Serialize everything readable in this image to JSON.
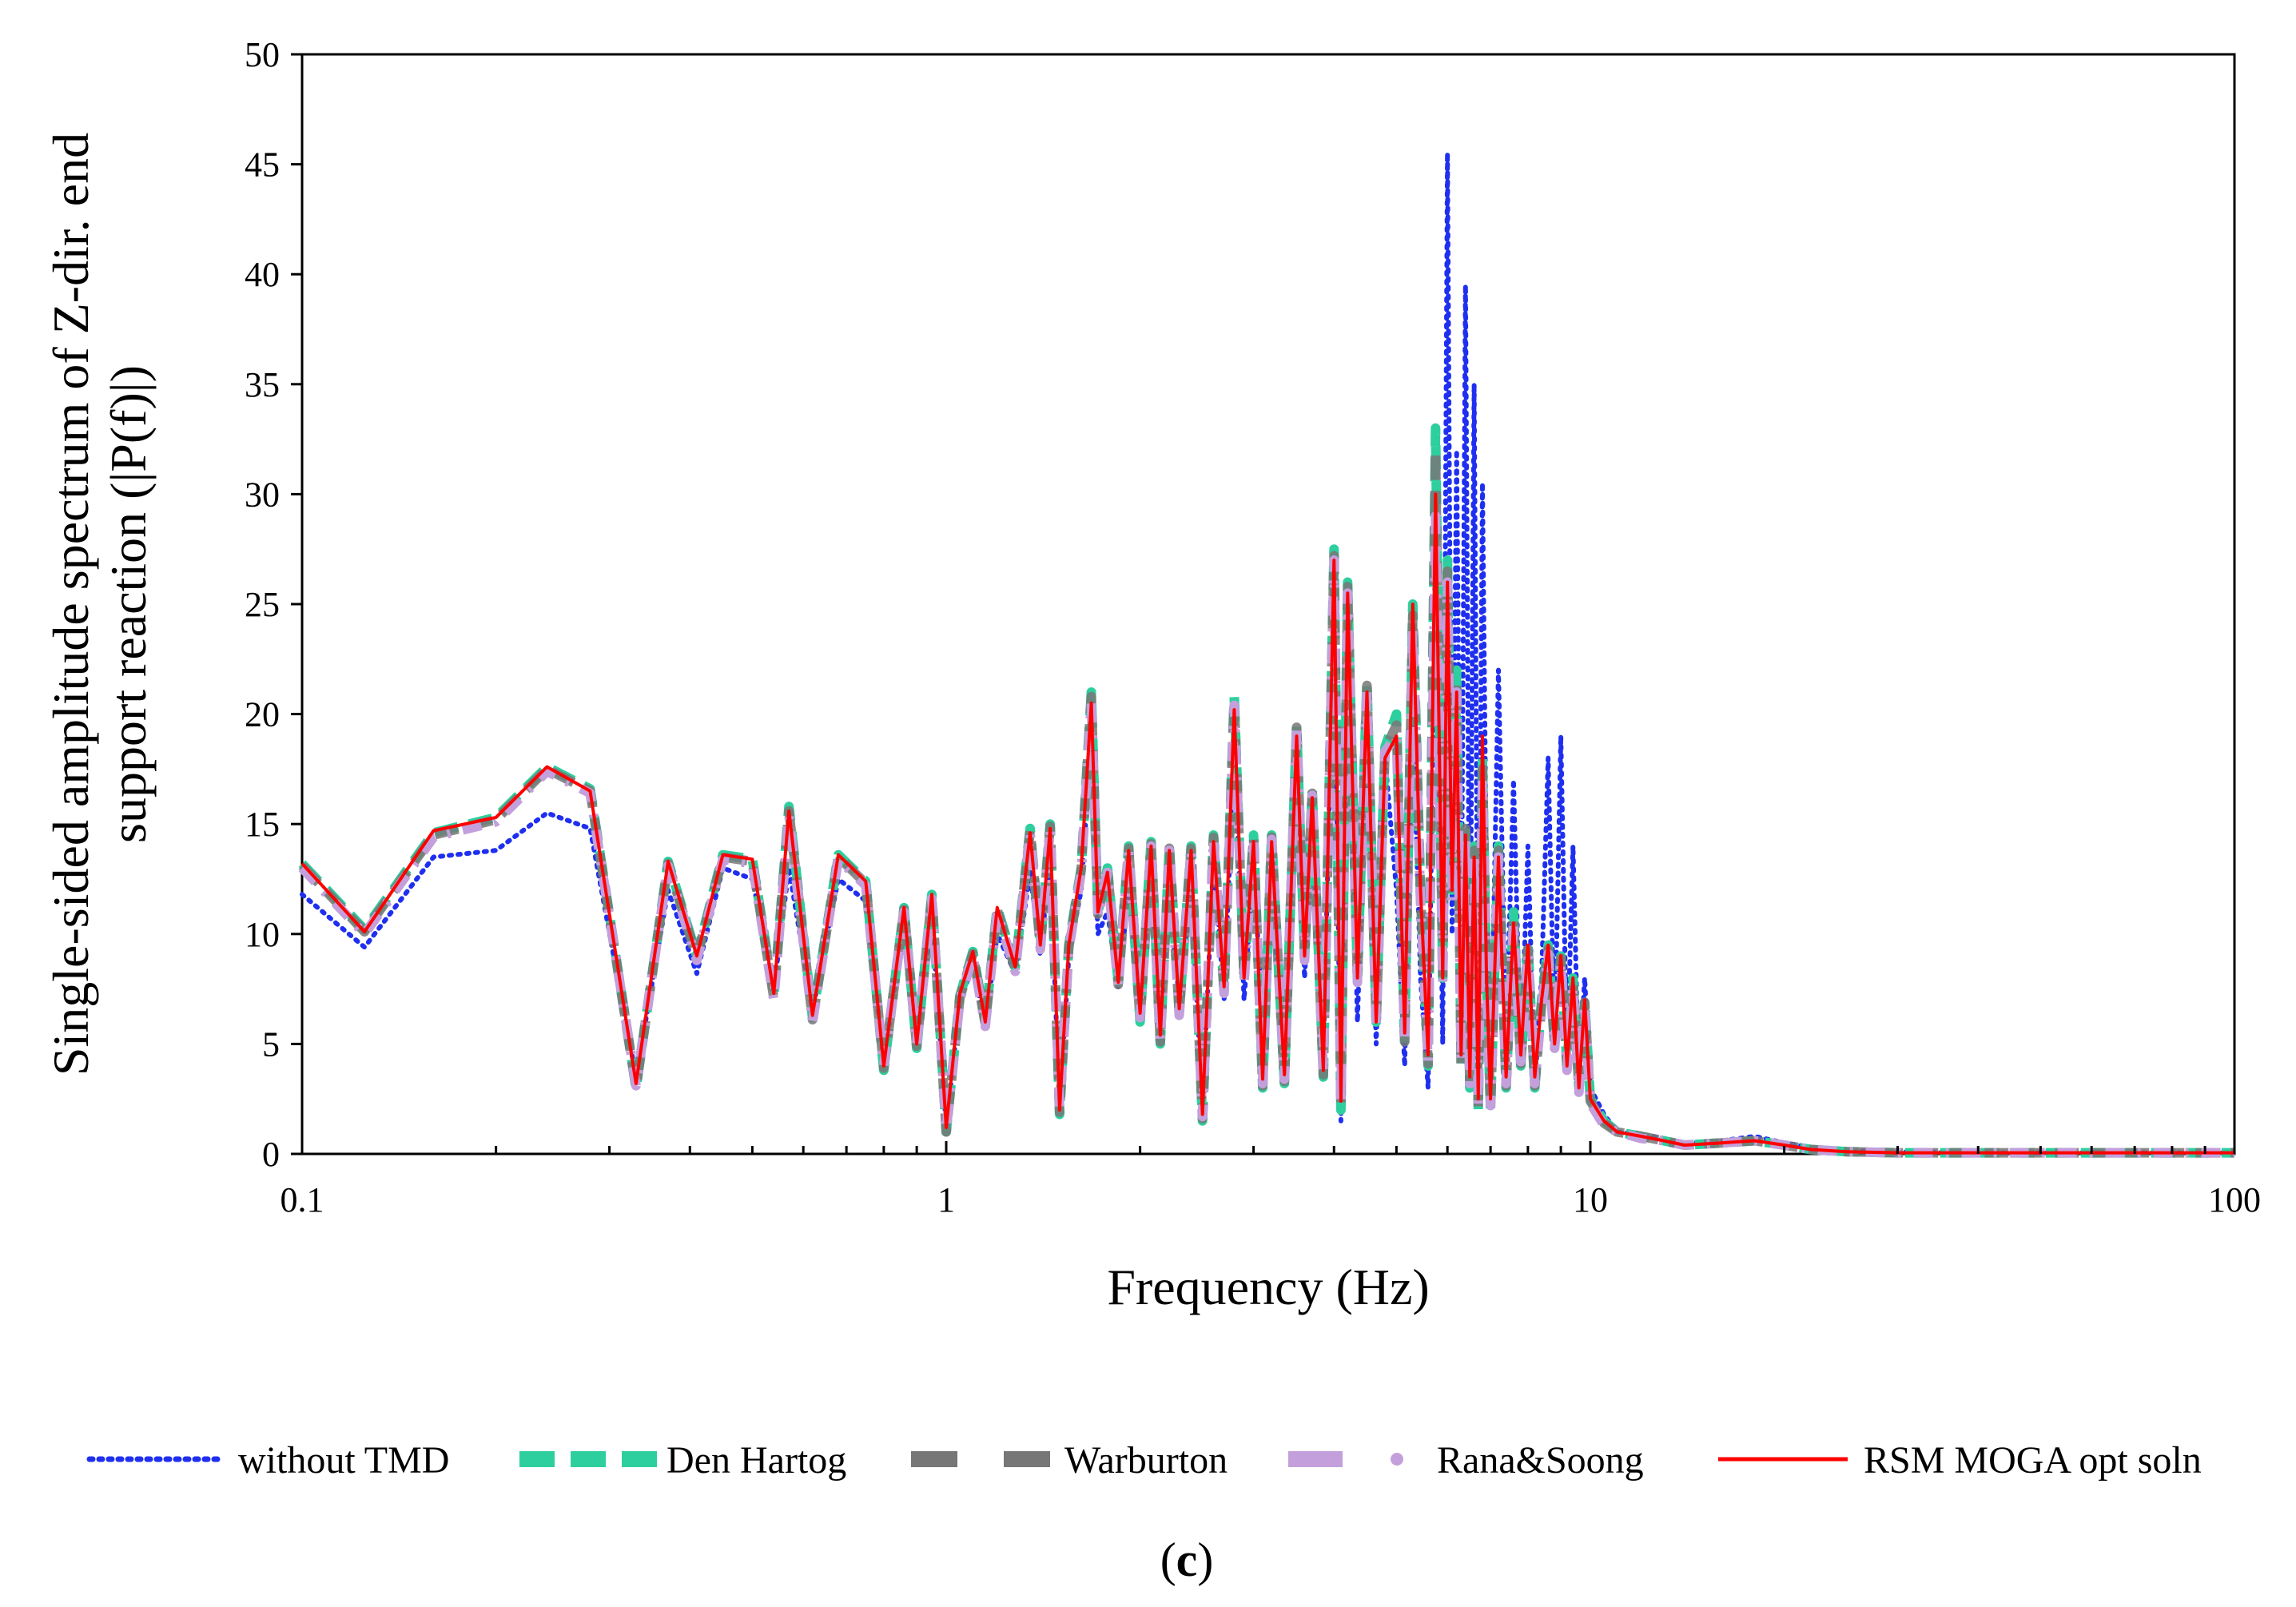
{
  "chart_data": {
    "type": "line",
    "title": "",
    "xlabel": "Frequency (Hz)",
    "ylabel_line1": "Single-sided amplitude spectrum of Z-dir. end",
    "ylabel_line2": "support reaction (|P(f)|)",
    "xscale": "log",
    "xlim": [
      0.1,
      100
    ],
    "ylim": [
      0,
      50
    ],
    "x_tick_labels": [
      "0.1",
      "1",
      "10",
      "100"
    ],
    "x_tick_values": [
      0.1,
      1,
      10,
      100
    ],
    "y_tick_labels": [
      "0",
      "5",
      "10",
      "15",
      "20",
      "25",
      "30",
      "35",
      "40",
      "45",
      "50"
    ],
    "y_tick_values": [
      0,
      5,
      10,
      15,
      20,
      25,
      30,
      35,
      40,
      45,
      50
    ],
    "grid": false,
    "legend_position": "bottom",
    "caption_open": "(",
    "caption_letter": "c",
    "caption_close": ")",
    "series": [
      {
        "name": "without TMD",
        "color": "#1f2ff0",
        "style": "dotted",
        "x": [
          0.1,
          0.125,
          0.16,
          0.2,
          0.24,
          0.28,
          0.33,
          0.37,
          0.41,
          0.45,
          0.5,
          0.54,
          0.57,
          0.62,
          0.68,
          0.75,
          0.8,
          0.86,
          0.9,
          0.95,
          1.0,
          1.05,
          1.1,
          1.15,
          1.2,
          1.28,
          1.35,
          1.4,
          1.45,
          1.5,
          1.55,
          1.62,
          1.68,
          1.72,
          1.78,
          1.85,
          1.92,
          2.0,
          2.08,
          2.15,
          2.22,
          2.3,
          2.4,
          2.5,
          2.6,
          2.7,
          2.8,
          2.9,
          3.0,
          3.1,
          3.2,
          3.35,
          3.5,
          3.6,
          3.7,
          3.85,
          4.0,
          4.1,
          4.2,
          4.35,
          4.5,
          4.65,
          4.8,
          5.0,
          5.15,
          5.3,
          5.45,
          5.6,
          5.75,
          5.9,
          6.0,
          6.1,
          6.2,
          6.3,
          6.4,
          6.5,
          6.6,
          6.7,
          6.8,
          6.9,
          7.0,
          7.2,
          7.4,
          7.6,
          7.8,
          8.0,
          8.2,
          8.4,
          8.6,
          8.8,
          9.0,
          9.2,
          9.4,
          9.6,
          9.8,
          10.0,
          10.5,
          11.0,
          12.0,
          13.0,
          14.0,
          16.0,
          18.0,
          20.0,
          22.0,
          25.0,
          30.0,
          40.0,
          60.0,
          100.0
        ],
        "y": [
          11.8,
          9.4,
          13.5,
          13.8,
          15.5,
          14.8,
          3.5,
          12.0,
          8.2,
          13.0,
          12.5,
          7.5,
          13.0,
          6.5,
          12.5,
          11.5,
          4.2,
          10.5,
          5.0,
          10.8,
          1.2,
          7.0,
          8.5,
          5.8,
          10.0,
          8.2,
          12.8,
          9.0,
          13.5,
          2.0,
          9.0,
          12.0,
          19.0,
          10.0,
          11.0,
          7.5,
          12.0,
          6.5,
          12.5,
          5.5,
          12.0,
          7.0,
          12.0,
          2.0,
          13.5,
          7.0,
          18.5,
          7.0,
          13.0,
          6.0,
          12.0,
          3.5,
          18.0,
          8.0,
          14.5,
          4.5,
          25.0,
          1.5,
          24.0,
          6.0,
          20.0,
          5.0,
          18.0,
          12.0,
          4.0,
          20.0,
          8.0,
          3.0,
          28.0,
          5.0,
          45.5,
          10.0,
          32.0,
          8.0,
          39.5,
          6.0,
          35.0,
          4.0,
          30.5,
          12.0,
          3.0,
          22.0,
          5.0,
          17.0,
          4.0,
          14.0,
          3.0,
          8.0,
          18.0,
          5.0,
          19.0,
          4.0,
          14.0,
          3.0,
          8.0,
          3.0,
          1.8,
          1.0,
          0.9,
          0.7,
          0.5,
          0.6,
          0.8,
          0.5,
          0.3,
          0.15,
          0.1,
          0.05,
          0.05,
          0.05
        ]
      },
      {
        "name": "Den Hartog",
        "color": "#2ecf9e",
        "style": "dashed",
        "x": [
          0.1,
          0.125,
          0.16,
          0.2,
          0.24,
          0.28,
          0.33,
          0.37,
          0.41,
          0.45,
          0.5,
          0.54,
          0.57,
          0.62,
          0.68,
          0.75,
          0.8,
          0.86,
          0.9,
          0.95,
          1.0,
          1.05,
          1.1,
          1.15,
          1.2,
          1.28,
          1.35,
          1.4,
          1.45,
          1.5,
          1.55,
          1.62,
          1.68,
          1.72,
          1.78,
          1.85,
          1.92,
          2.0,
          2.08,
          2.15,
          2.22,
          2.3,
          2.4,
          2.5,
          2.6,
          2.7,
          2.8,
          2.9,
          3.0,
          3.1,
          3.2,
          3.35,
          3.5,
          3.6,
          3.7,
          3.85,
          4.0,
          4.1,
          4.2,
          4.35,
          4.5,
          4.65,
          4.8,
          5.0,
          5.15,
          5.3,
          5.45,
          5.6,
          5.75,
          5.9,
          6.0,
          6.1,
          6.2,
          6.3,
          6.4,
          6.5,
          6.6,
          6.7,
          6.8,
          6.9,
          7.0,
          7.2,
          7.4,
          7.6,
          7.8,
          8.0,
          8.2,
          8.4,
          8.6,
          8.8,
          9.0,
          9.2,
          9.4,
          9.6,
          9.8,
          10.0,
          10.5,
          11.0,
          12.0,
          13.0,
          14.0,
          16.0,
          18.0,
          20.0,
          22.0,
          25.0,
          30.0,
          40.0,
          60.0,
          100.0
        ],
        "y": [
          13.2,
          10.2,
          14.6,
          15.3,
          17.6,
          16.6,
          3.0,
          13.3,
          9.0,
          13.6,
          13.4,
          7.2,
          15.8,
          6.2,
          13.6,
          12.4,
          3.8,
          11.2,
          4.8,
          11.8,
          1.0,
          7.2,
          9.2,
          6.0,
          11.2,
          8.5,
          14.8,
          9.5,
          15.0,
          1.8,
          9.5,
          13.0,
          21.0,
          11.0,
          13.0,
          7.8,
          14.0,
          6.0,
          14.2,
          5.0,
          14.0,
          6.5,
          14.0,
          1.5,
          14.5,
          7.5,
          20.8,
          8.0,
          14.5,
          3.0,
          14.5,
          3.2,
          19.5,
          9.0,
          16.5,
          3.5,
          27.5,
          2.0,
          26.0,
          8.0,
          21.5,
          6.0,
          18.5,
          20.0,
          5.0,
          25.0,
          12.0,
          4.0,
          33.0,
          8.0,
          27.0,
          12.0,
          22.0,
          4.0,
          15.0,
          3.0,
          14.0,
          2.0,
          18.0,
          8.0,
          2.0,
          14.0,
          3.0,
          11.0,
          4.0,
          9.5,
          3.0,
          7.0,
          9.5,
          5.0,
          9.0,
          4.0,
          8.0,
          3.0,
          7.0,
          2.5,
          1.5,
          1.0,
          0.8,
          0.6,
          0.4,
          0.5,
          0.6,
          0.4,
          0.2,
          0.1,
          0.05,
          0.05,
          0.05,
          0.05
        ]
      },
      {
        "name": "Warburton",
        "color": "#777777",
        "style": "dashed",
        "x": [
          0.1,
          0.125,
          0.16,
          0.2,
          0.24,
          0.28,
          0.33,
          0.37,
          0.41,
          0.45,
          0.5,
          0.54,
          0.57,
          0.62,
          0.68,
          0.75,
          0.8,
          0.86,
          0.9,
          0.95,
          1.0,
          1.05,
          1.1,
          1.15,
          1.2,
          1.28,
          1.35,
          1.4,
          1.45,
          1.5,
          1.55,
          1.62,
          1.68,
          1.72,
          1.78,
          1.85,
          1.92,
          2.0,
          2.08,
          2.15,
          2.22,
          2.3,
          2.4,
          2.5,
          2.6,
          2.7,
          2.8,
          2.9,
          3.0,
          3.1,
          3.2,
          3.35,
          3.5,
          3.6,
          3.7,
          3.85,
          4.0,
          4.1,
          4.2,
          4.35,
          4.5,
          4.65,
          4.8,
          5.0,
          5.15,
          5.3,
          5.45,
          5.6,
          5.75,
          5.9,
          6.0,
          6.1,
          6.2,
          6.3,
          6.4,
          6.5,
          6.6,
          6.7,
          6.8,
          6.9,
          7.0,
          7.2,
          7.4,
          7.6,
          7.8,
          8.0,
          8.2,
          8.4,
          8.6,
          8.8,
          9.0,
          9.2,
          9.4,
          9.6,
          9.8,
          10.0,
          10.5,
          11.0,
          12.0,
          13.0,
          14.0,
          16.0,
          18.0,
          20.0,
          22.0,
          25.0,
          30.0,
          40.0,
          60.0,
          100.0
        ],
        "y": [
          13.1,
          10.1,
          14.5,
          15.2,
          17.5,
          16.5,
          3.0,
          13.2,
          8.9,
          13.5,
          13.3,
          7.1,
          15.6,
          6.1,
          13.5,
          12.3,
          3.9,
          11.1,
          4.9,
          11.7,
          1.0,
          7.1,
          9.1,
          5.9,
          11.1,
          8.4,
          14.7,
          9.4,
          14.9,
          1.9,
          9.4,
          12.9,
          20.8,
          10.9,
          12.9,
          7.7,
          13.9,
          6.1,
          14.1,
          5.1,
          13.9,
          6.4,
          13.9,
          1.6,
          14.4,
          7.4,
          20.6,
          7.9,
          14.4,
          3.1,
          14.4,
          3.3,
          19.4,
          8.9,
          16.4,
          3.6,
          27.2,
          2.1,
          25.8,
          7.9,
          21.3,
          5.9,
          18.4,
          19.5,
          5.1,
          24.5,
          11.8,
          4.1,
          32.0,
          7.9,
          26.5,
          11.8,
          21.5,
          4.1,
          14.8,
          3.1,
          13.8,
          2.1,
          17.5,
          7.9,
          2.1,
          13.8,
          3.1,
          10.8,
          4.1,
          9.3,
          3.1,
          6.8,
          9.3,
          4.9,
          8.9,
          3.9,
          7.8,
          2.9,
          6.9,
          2.4,
          1.4,
          1.0,
          0.8,
          0.6,
          0.4,
          0.5,
          0.6,
          0.4,
          0.2,
          0.1,
          0.05,
          0.05,
          0.05,
          0.05
        ]
      },
      {
        "name": "Rana&Soong",
        "color": "#c3a0dc",
        "style": "dash-dot",
        "x": [
          0.1,
          0.125,
          0.16,
          0.2,
          0.24,
          0.28,
          0.33,
          0.37,
          0.41,
          0.45,
          0.5,
          0.54,
          0.57,
          0.62,
          0.68,
          0.75,
          0.8,
          0.86,
          0.9,
          0.95,
          1.0,
          1.05,
          1.1,
          1.15,
          1.2,
          1.28,
          1.35,
          1.4,
          1.45,
          1.5,
          1.55,
          1.62,
          1.68,
          1.72,
          1.78,
          1.85,
          1.92,
          2.0,
          2.08,
          2.15,
          2.22,
          2.3,
          2.4,
          2.5,
          2.6,
          2.7,
          2.8,
          2.9,
          3.0,
          3.1,
          3.2,
          3.35,
          3.5,
          3.6,
          3.7,
          3.85,
          4.0,
          4.1,
          4.2,
          4.35,
          4.5,
          4.65,
          4.8,
          5.0,
          5.15,
          5.3,
          5.45,
          5.6,
          5.75,
          5.9,
          6.0,
          6.1,
          6.2,
          6.3,
          6.4,
          6.5,
          6.6,
          6.7,
          6.8,
          6.9,
          7.0,
          7.2,
          7.4,
          7.6,
          7.8,
          8.0,
          8.2,
          8.4,
          8.6,
          8.8,
          9.0,
          9.2,
          9.4,
          9.6,
          9.8,
          10.0,
          10.5,
          11.0,
          12.0,
          13.0,
          14.0,
          16.0,
          18.0,
          20.0,
          22.0,
          25.0,
          30.0,
          40.0,
          60.0,
          100.0
        ],
        "y": [
          13.0,
          10.0,
          14.4,
          15.1,
          17.4,
          16.4,
          3.1,
          13.1,
          8.8,
          13.4,
          13.2,
          7.0,
          15.4,
          6.0,
          13.4,
          12.2,
          4.0,
          11.0,
          5.0,
          11.6,
          1.1,
          7.0,
          9.0,
          5.8,
          11.0,
          8.3,
          14.6,
          9.3,
          14.8,
          2.0,
          9.3,
          12.8,
          20.5,
          10.8,
          12.8,
          7.6,
          13.8,
          6.2,
          14.0,
          5.2,
          13.8,
          6.3,
          13.8,
          1.7,
          14.3,
          7.3,
          20.4,
          7.8,
          14.3,
          3.2,
          14.3,
          3.4,
          19.3,
          8.8,
          16.3,
          3.7,
          27.0,
          2.2,
          25.5,
          7.8,
          21.1,
          5.8,
          18.3,
          19.0,
          5.2,
          24.0,
          11.5,
          4.2,
          29.0,
          7.8,
          26.0,
          11.5,
          21.0,
          4.2,
          14.5,
          3.2,
          13.5,
          2.2,
          17.0,
          7.8,
          2.2,
          13.5,
          3.2,
          10.5,
          4.2,
          9.1,
          3.2,
          6.6,
          9.1,
          4.8,
          8.7,
          3.8,
          7.6,
          2.8,
          6.8,
          2.3,
          1.3,
          1.0,
          0.7,
          0.6,
          0.4,
          0.5,
          0.6,
          0.4,
          0.2,
          0.1,
          0.05,
          0.05,
          0.05,
          0.05
        ]
      },
      {
        "name": "RSM MOGA opt soln",
        "color": "#ff0000",
        "style": "solid",
        "x": [
          0.1,
          0.125,
          0.16,
          0.2,
          0.24,
          0.28,
          0.33,
          0.37,
          0.41,
          0.45,
          0.5,
          0.54,
          0.57,
          0.62,
          0.68,
          0.75,
          0.8,
          0.86,
          0.9,
          0.95,
          1.0,
          1.05,
          1.1,
          1.15,
          1.2,
          1.28,
          1.35,
          1.4,
          1.45,
          1.5,
          1.55,
          1.62,
          1.68,
          1.72,
          1.78,
          1.85,
          1.92,
          2.0,
          2.08,
          2.15,
          2.22,
          2.3,
          2.4,
          2.5,
          2.6,
          2.7,
          2.8,
          2.9,
          3.0,
          3.1,
          3.2,
          3.35,
          3.5,
          3.6,
          3.7,
          3.85,
          4.0,
          4.1,
          4.2,
          4.35,
          4.5,
          4.65,
          4.8,
          5.0,
          5.15,
          5.3,
          5.45,
          5.6,
          5.75,
          5.9,
          6.0,
          6.1,
          6.2,
          6.3,
          6.4,
          6.5,
          6.6,
          6.7,
          6.8,
          6.9,
          7.0,
          7.2,
          7.4,
          7.6,
          7.8,
          8.0,
          8.2,
          8.4,
          8.6,
          8.8,
          9.0,
          9.2,
          9.4,
          9.6,
          9.8,
          10.0,
          10.5,
          11.0,
          12.0,
          13.0,
          14.0,
          16.0,
          18.0,
          20.0,
          22.0,
          25.0,
          30.0,
          40.0,
          60.0,
          100.0
        ],
        "y": [
          13.2,
          10.1,
          14.7,
          15.3,
          17.6,
          16.5,
          3.2,
          13.3,
          9.0,
          13.6,
          13.4,
          7.3,
          15.6,
          6.3,
          13.6,
          12.4,
          4.0,
          11.2,
          5.0,
          11.8,
          1.2,
          7.3,
          9.2,
          6.0,
          11.2,
          8.5,
          14.6,
          9.5,
          14.8,
          2.0,
          9.5,
          13.0,
          20.5,
          11.0,
          12.8,
          7.8,
          13.8,
          6.4,
          14.0,
          5.4,
          13.8,
          6.6,
          13.8,
          1.8,
          14.2,
          7.6,
          20.2,
          8.0,
          14.2,
          3.4,
          14.2,
          3.6,
          19.0,
          9.0,
          16.2,
          3.8,
          27.0,
          2.4,
          25.5,
          8.0,
          21.0,
          6.0,
          18.0,
          19.0,
          5.5,
          25.0,
          12.0,
          4.5,
          30.0,
          8.0,
          26.0,
          12.0,
          21.0,
          4.5,
          14.5,
          3.5,
          13.5,
          2.5,
          19.0,
          8.0,
          2.5,
          13.5,
          3.5,
          10.5,
          4.5,
          9.5,
          3.5,
          7.0,
          9.5,
          5.0,
          9.0,
          4.0,
          8.0,
          3.0,
          7.0,
          2.5,
          1.5,
          1.0,
          0.8,
          0.6,
          0.4,
          0.5,
          0.6,
          0.4,
          0.2,
          0.1,
          0.05,
          0.05,
          0.05,
          0.05
        ]
      }
    ]
  }
}
